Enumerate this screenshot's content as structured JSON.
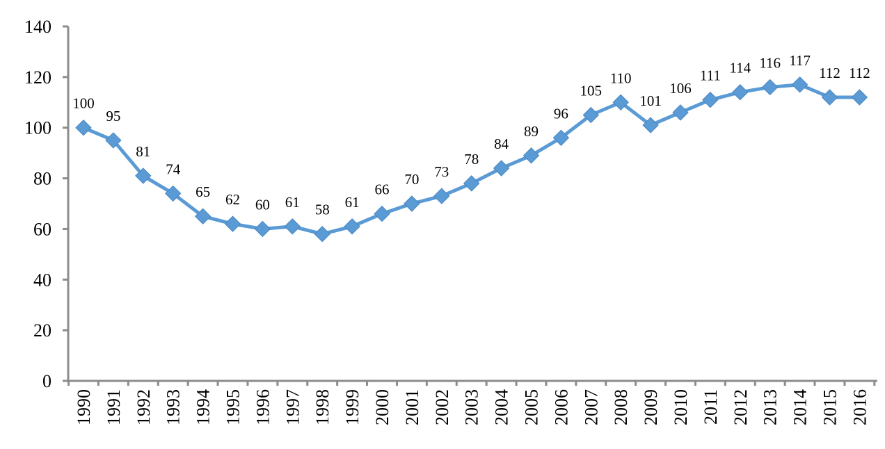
{
  "chart_data": {
    "type": "line",
    "title": "",
    "xlabel": "",
    "ylabel": "",
    "ylim": [
      0,
      140
    ],
    "y_ticks": [
      "0",
      "20",
      "40",
      "60",
      "80",
      "100",
      "120",
      "140"
    ],
    "grid": false,
    "legend": "none",
    "line_color": "#5B9BD5",
    "marker": "diamond",
    "categories": [
      "1990",
      "1991",
      "1992",
      "1993",
      "1994",
      "1995",
      "1996",
      "1997",
      "1998",
      "1999",
      "2000",
      "2001",
      "2002",
      "2003",
      "2004",
      "2005",
      "2006",
      "2007",
      "2008",
      "2009",
      "2010",
      "2011",
      "2012",
      "2013",
      "2014",
      "2015",
      "2016"
    ],
    "values": [
      100,
      95,
      81,
      74,
      65,
      62,
      60,
      61,
      58,
      61,
      66,
      70,
      73,
      78,
      84,
      89,
      96,
      105,
      110,
      101,
      106,
      111,
      114,
      116,
      117,
      112,
      112
    ],
    "data_labels": [
      "100",
      "95",
      "81",
      "74",
      "65",
      "62",
      "60",
      "61",
      "58",
      "61",
      "66",
      "70",
      "73",
      "78",
      "84",
      "89",
      "96",
      "105",
      "110",
      "101",
      "106",
      "111",
      "114",
      "116",
      "117",
      "112",
      "112"
    ]
  }
}
